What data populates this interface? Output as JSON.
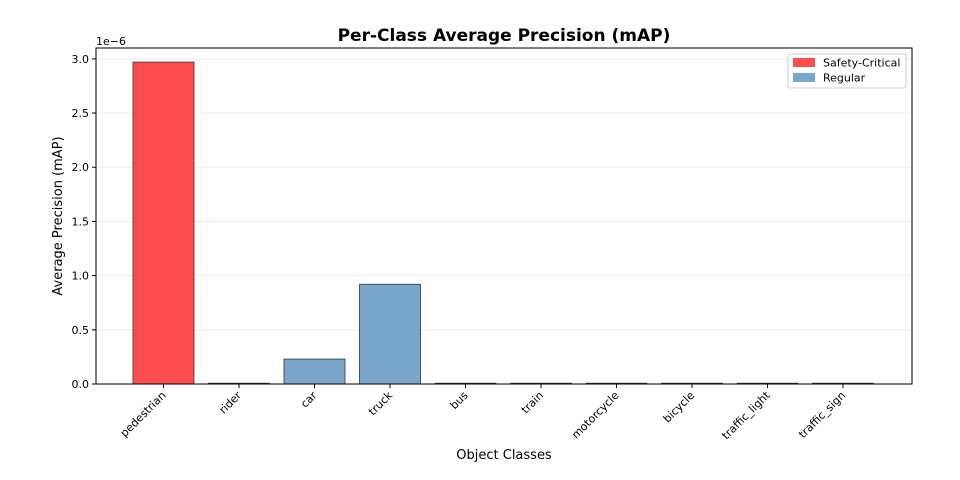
{
  "chart_data": {
    "type": "bar",
    "title": "Per-Class Average Precision (mAP)",
    "xlabel": "Object Classes",
    "ylabel": "Average Precision (mAP)",
    "y_multiplier": "1e−6",
    "ylim": [
      0,
      3.1
    ],
    "yticks": [
      "0.0",
      "0.5",
      "1.0",
      "1.5",
      "2.0",
      "2.5",
      "3.0"
    ],
    "grid": "y",
    "legend_position": "top-right",
    "categories": [
      "pedestrian",
      "rider",
      "car",
      "truck",
      "bus",
      "train",
      "motorcycle",
      "bicycle",
      "traffic_light",
      "traffic_sign"
    ],
    "values": [
      2.97,
      0,
      0.23,
      0.92,
      0,
      0,
      0,
      0,
      0,
      0
    ],
    "groups": [
      "Safety-Critical",
      "Safety-Critical",
      "Regular",
      "Regular",
      "Regular",
      "Regular",
      "Safety-Critical",
      "Safety-Critical",
      "Regular",
      "Regular"
    ],
    "legend": [
      {
        "name": "Safety-Critical",
        "color": "#ff4c4c"
      },
      {
        "name": "Regular",
        "color": "#7aa6c9"
      }
    ]
  }
}
